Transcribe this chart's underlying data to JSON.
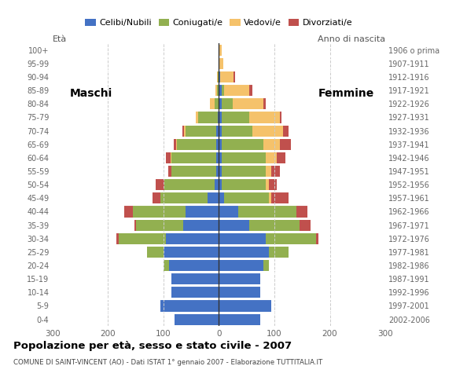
{
  "age_groups": [
    "0-4",
    "5-9",
    "10-14",
    "15-19",
    "20-24",
    "25-29",
    "30-34",
    "35-39",
    "40-44",
    "45-49",
    "50-54",
    "55-59",
    "60-64",
    "65-69",
    "70-74",
    "75-79",
    "80-84",
    "85-89",
    "90-94",
    "95-99",
    "100+"
  ],
  "birth_years": [
    "2002-2006",
    "1997-2001",
    "1992-1996",
    "1987-1991",
    "1982-1986",
    "1977-1981",
    "1972-1976",
    "1967-1971",
    "1962-1966",
    "1957-1961",
    "1952-1956",
    "1947-1951",
    "1942-1946",
    "1937-1941",
    "1932-1936",
    "1927-1931",
    "1922-1926",
    "1917-1921",
    "1912-1916",
    "1907-1911",
    "1906 o prima"
  ],
  "colors": {
    "celibi": "#4472c4",
    "coniugati": "#92b050",
    "vedovi": "#f5c26b",
    "divorziati": "#c0504d"
  },
  "males": {
    "celibi": [
      80,
      105,
      85,
      85,
      90,
      100,
      95,
      65,
      60,
      20,
      8,
      5,
      5,
      5,
      5,
      2,
      0,
      0,
      0,
      0,
      0
    ],
    "coniugati": [
      0,
      0,
      0,
      0,
      10,
      30,
      85,
      85,
      95,
      85,
      90,
      80,
      80,
      70,
      55,
      35,
      8,
      3,
      2,
      0,
      0
    ],
    "vedovi": [
      0,
      0,
      0,
      0,
      0,
      0,
      0,
      0,
      0,
      0,
      1,
      1,
      2,
      2,
      3,
      5,
      8,
      3,
      1,
      0,
      0
    ],
    "divorziati": [
      0,
      0,
      0,
      0,
      0,
      0,
      5,
      2,
      15,
      15,
      15,
      5,
      8,
      5,
      3,
      0,
      0,
      0,
      0,
      0,
      0
    ]
  },
  "females": {
    "celibi": [
      75,
      95,
      75,
      75,
      80,
      90,
      85,
      55,
      35,
      10,
      5,
      5,
      5,
      5,
      5,
      5,
      5,
      5,
      2,
      0,
      0
    ],
    "coniugati": [
      0,
      0,
      0,
      0,
      10,
      35,
      90,
      90,
      105,
      80,
      80,
      80,
      80,
      75,
      55,
      50,
      20,
      5,
      0,
      0,
      0
    ],
    "vedovi": [
      0,
      0,
      0,
      0,
      0,
      0,
      0,
      0,
      0,
      5,
      5,
      10,
      20,
      30,
      55,
      55,
      55,
      45,
      25,
      8,
      5
    ],
    "divorziati": [
      0,
      0,
      0,
      0,
      0,
      0,
      5,
      20,
      20,
      30,
      15,
      15,
      15,
      20,
      10,
      3,
      5,
      5,
      2,
      0,
      0
    ]
  },
  "title": "Popolazione per età, sesso e stato civile - 2007",
  "subtitle": "COMUNE DI SAINT-VINCENT (AO) - Dati ISTAT 1° gennaio 2007 - Elaborazione TUTTITALIA.IT",
  "xlim": 300,
  "legend_labels": [
    "Celibi/Nubili",
    "Coniugati/e",
    "Vedovi/e",
    "Divorziati/e"
  ],
  "eta_label": "Età",
  "anno_label": "Anno di nascita",
  "maschi_label": "Maschi",
  "femmine_label": "Femmine"
}
